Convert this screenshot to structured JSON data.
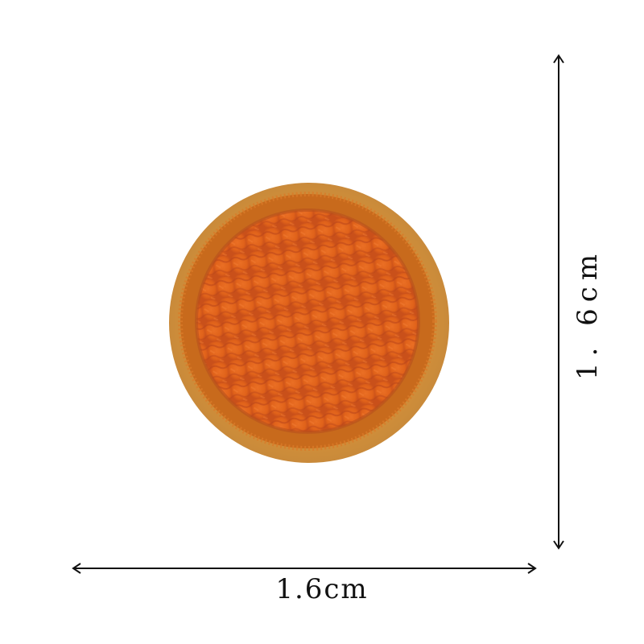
{
  "image": {
    "subject": "embroidered-round-patch",
    "colors": {
      "background": "#ffffff",
      "patch_fill": "#e0621a",
      "patch_border": "#c9781e",
      "felt_backing": "#d49540",
      "dimension_line": "#111111"
    }
  },
  "dimensions": {
    "width_label": "1.6cm",
    "height_label": "1. 6cm"
  }
}
